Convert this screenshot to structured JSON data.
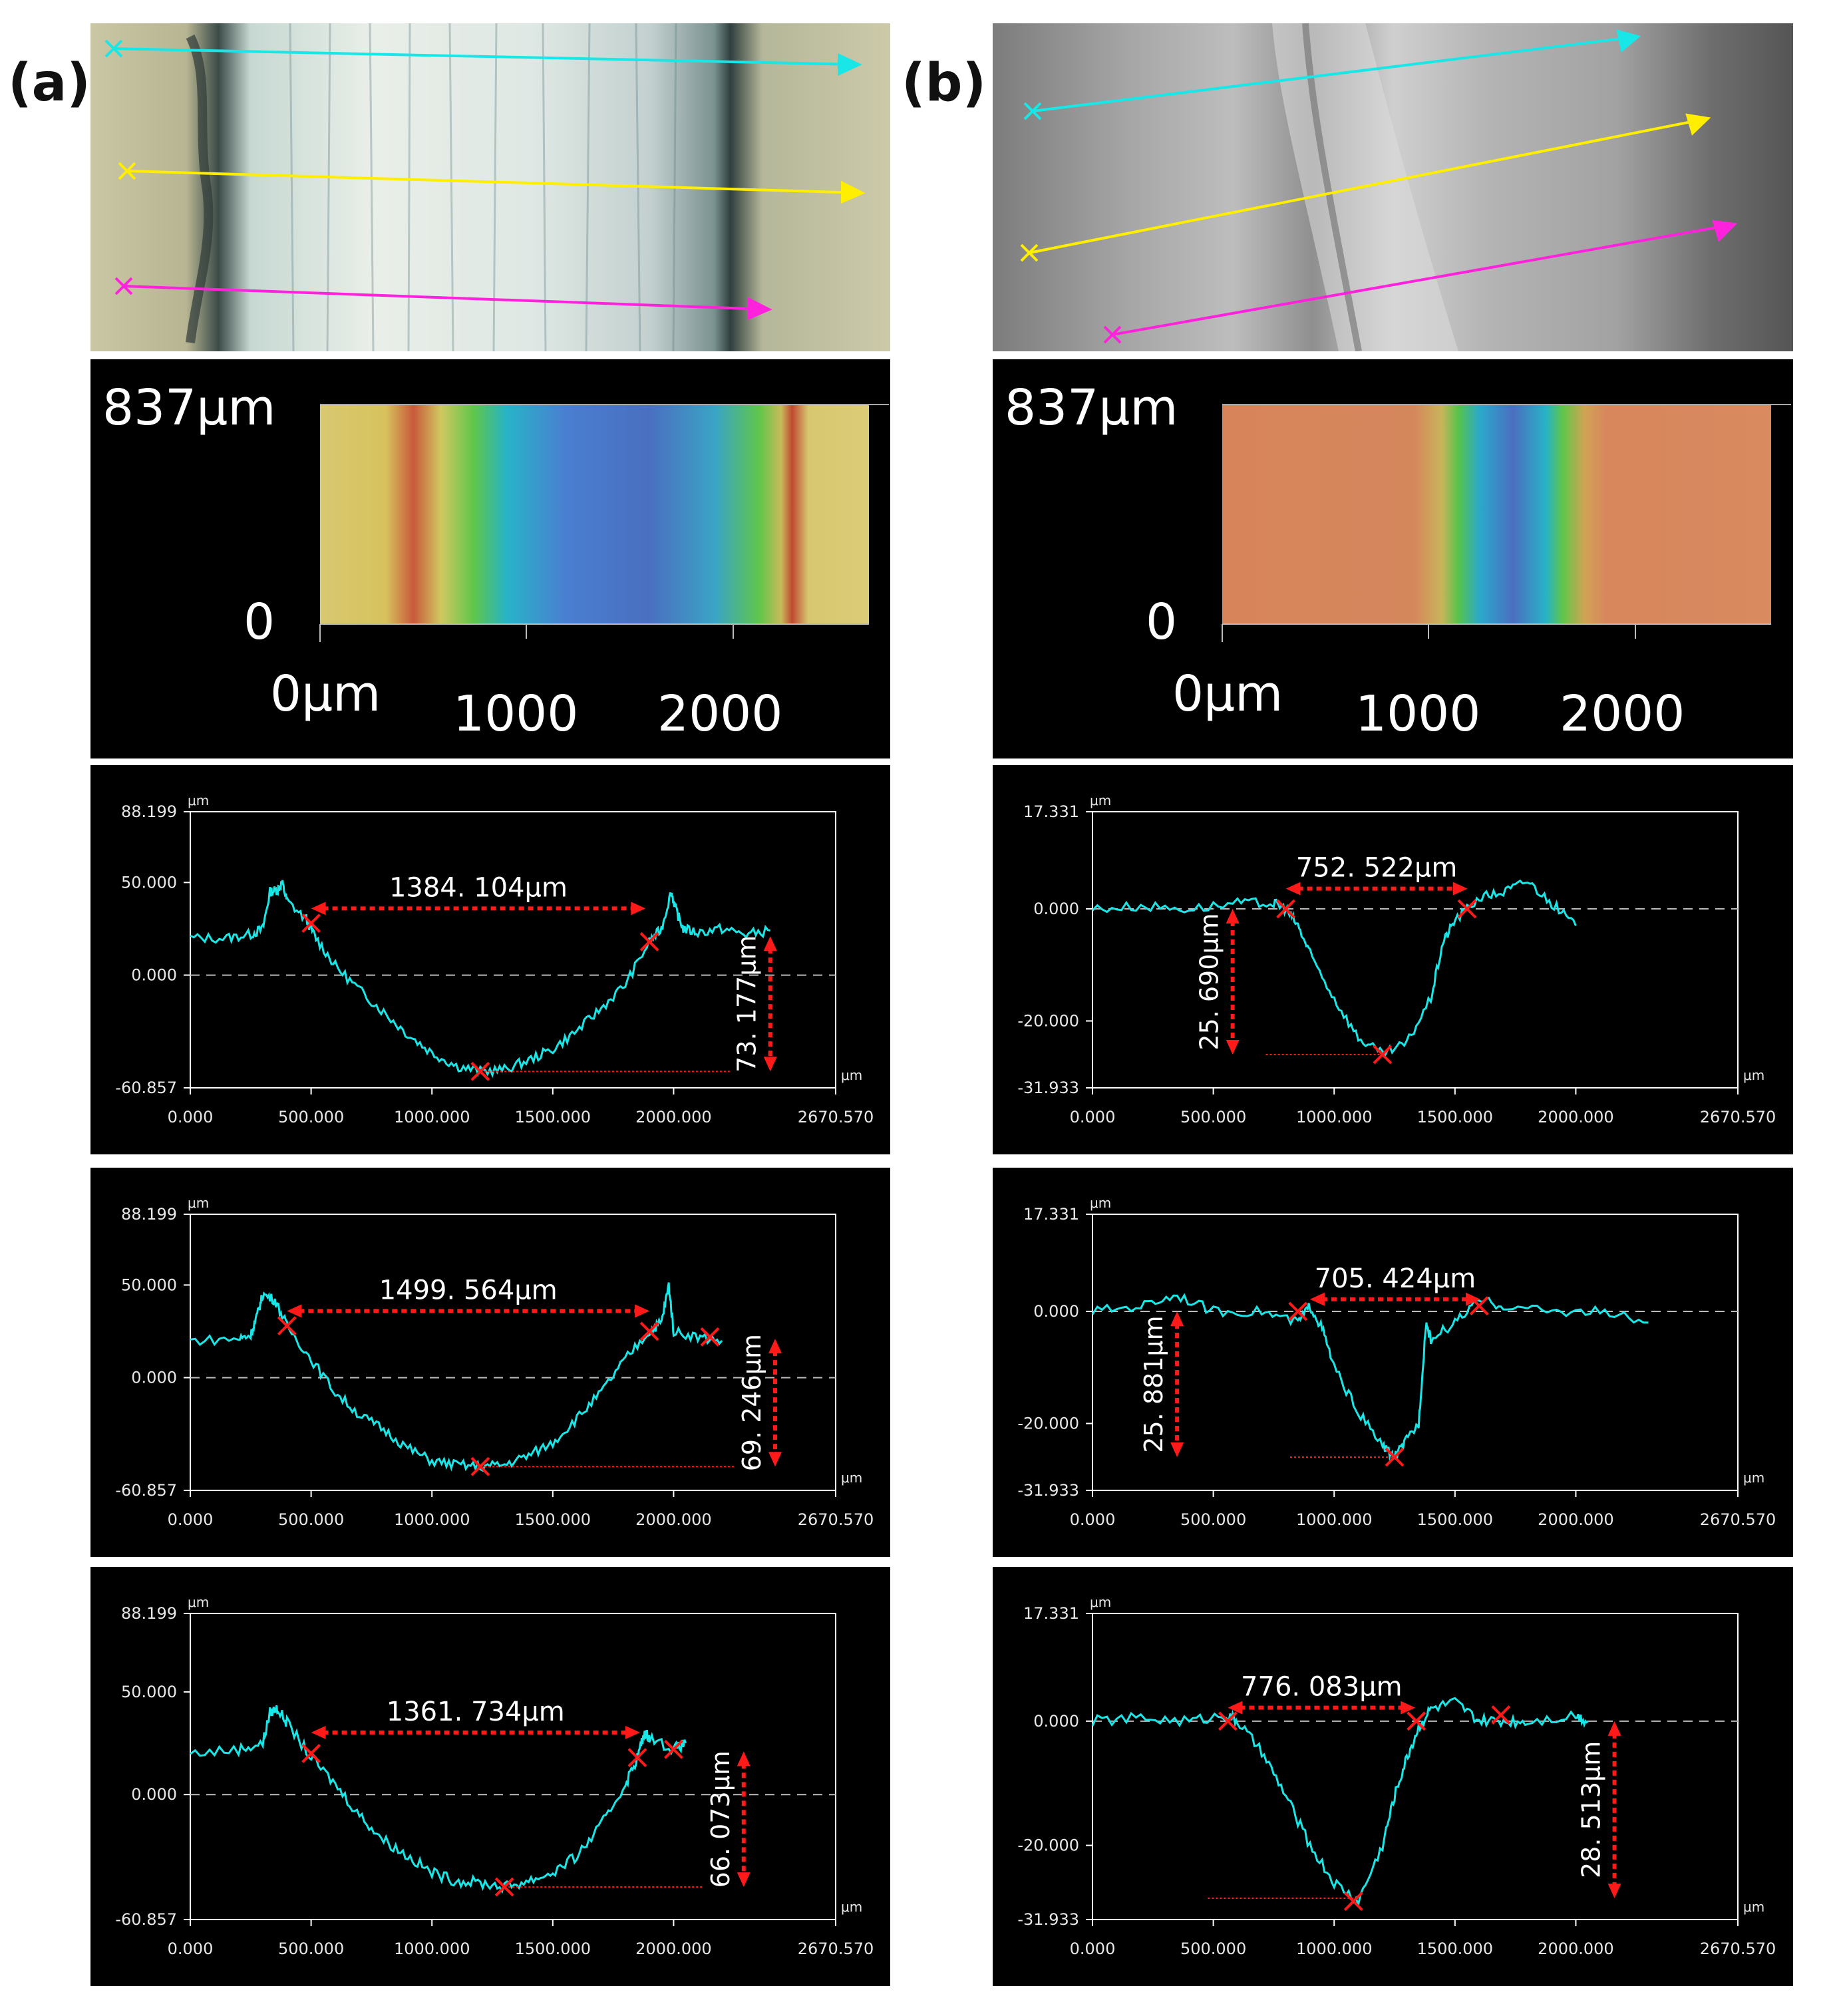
{
  "figure": {
    "panel_labels": [
      "(a)",
      "(b)"
    ],
    "colors": {
      "profile": "#19e6e6",
      "annotation": "#ff1a1a",
      "line_cyan": "#19e6e6",
      "line_yellow": "#ffee00",
      "line_magenta": "#ff22dd",
      "frame": "#ffffff",
      "tick_text": "#e8e8e8"
    }
  },
  "height_maps": [
    {
      "panel": "(a)",
      "top_label": "837μm",
      "zero_label": "0",
      "x_labels": [
        "0μm",
        "1000",
        "2000"
      ],
      "palette": "yellow-green-blue"
    },
    {
      "panel": "(b)",
      "top_label": "837μm",
      "zero_label": "0",
      "x_labels": [
        "0μm",
        "1000",
        "2000"
      ],
      "palette": "orange-green-blue"
    }
  ],
  "chart_data": [
    {
      "type": "line",
      "panel": "(a)",
      "profile_index": 1,
      "ylabel": "μm",
      "xlabel": "μm",
      "xlim": [
        0,
        2670.57
      ],
      "ylim": [
        -60.857,
        88.199
      ],
      "y_ticks": [
        "88.199",
        "50.000",
        "0.000",
        "-60.857"
      ],
      "x_ticks": [
        "0.000",
        "500.000",
        "1000.000",
        "1500.000",
        "2000.000",
        "2670.570"
      ],
      "x": [
        0,
        150,
        250,
        300,
        330,
        360,
        380,
        400,
        480,
        520,
        600,
        700,
        800,
        900,
        1000,
        1100,
        1200,
        1300,
        1400,
        1500,
        1600,
        1700,
        1800,
        1900,
        1950,
        1990,
        2010,
        2040,
        2100,
        2200,
        2300,
        2400
      ],
      "values": [
        20,
        20,
        22,
        25,
        45,
        46,
        50,
        40,
        30,
        20,
        5,
        -8,
        -20,
        -32,
        -42,
        -49,
        -52,
        -51,
        -46,
        -40,
        -30,
        -18,
        -5,
        18,
        25,
        45,
        35,
        25,
        23,
        25,
        22,
        24
      ],
      "width_label": "1384. 104μm",
      "width_range": [
        500,
        1884
      ],
      "depth_label": "73. 177μm",
      "depth_range": [
        -52,
        21
      ],
      "depth_x": 2400,
      "min_x": 1200,
      "marker_points": [
        [
          500,
          28
        ],
        [
          1200,
          -52
        ],
        [
          1900,
          18
        ]
      ]
    },
    {
      "type": "line",
      "panel": "(a)",
      "profile_index": 2,
      "ylabel": "μm",
      "xlabel": "μm",
      "xlim": [
        0,
        2670.57
      ],
      "ylim": [
        -60.857,
        88.199
      ],
      "y_ticks": [
        "88.199",
        "50.000",
        "0.000",
        "-60.857"
      ],
      "x_ticks": [
        "0.000",
        "500.000",
        "1000.000",
        "1500.000",
        "2000.000",
        "2670.570"
      ],
      "x": [
        0,
        200,
        250,
        280,
        300,
        350,
        400,
        500,
        600,
        700,
        800,
        900,
        1000,
        1100,
        1200,
        1300,
        1400,
        1500,
        1600,
        1700,
        1800,
        1900,
        1950,
        1980,
        2000,
        2100,
        2200
      ],
      "values": [
        20,
        21,
        23,
        35,
        45,
        42,
        28,
        10,
        -8,
        -20,
        -28,
        -38,
        -45,
        -47,
        -48,
        -47,
        -42,
        -35,
        -22,
        -8,
        10,
        25,
        30,
        50,
        25,
        22,
        20
      ],
      "width_label": "1499. 564μm",
      "width_range": [
        400,
        1900
      ],
      "depth_label": "69. 246μm",
      "depth_range": [
        -48,
        21
      ],
      "depth_x": 2420,
      "min_x": 1200,
      "marker_points": [
        [
          400,
          28
        ],
        [
          1200,
          -48
        ],
        [
          1900,
          25
        ],
        [
          2150,
          22
        ]
      ]
    },
    {
      "type": "line",
      "panel": "(a)",
      "profile_index": 3,
      "ylabel": "μm",
      "xlabel": "μm",
      "xlim": [
        0,
        2670.57
      ],
      "ylim": [
        -60.857,
        88.199
      ],
      "y_ticks": [
        "88.199",
        "50.000",
        "0.000",
        "-60.857"
      ],
      "x_ticks": [
        "0.000",
        "500.000",
        "1000.000",
        "1500.000",
        "2000.000",
        "2670.570"
      ],
      "x": [
        0,
        200,
        300,
        330,
        360,
        400,
        500,
        600,
        700,
        800,
        900,
        1000,
        1100,
        1200,
        1300,
        1400,
        1500,
        1600,
        1700,
        1800,
        1850,
        1880,
        1900,
        2000,
        2050
      ],
      "values": [
        20,
        22,
        25,
        40,
        42,
        35,
        18,
        5,
        -10,
        -22,
        -30,
        -38,
        -42,
        -43,
        -45,
        -42,
        -38,
        -30,
        -15,
        5,
        18,
        30,
        28,
        22,
        25
      ],
      "width_label": "1361. 734μm",
      "width_range": [
        500,
        1861
      ],
      "depth_label": "66. 073μm",
      "depth_range": [
        -45,
        21
      ],
      "depth_x": 2290,
      "min_x": 1300,
      "marker_points": [
        [
          500,
          20
        ],
        [
          1300,
          -45
        ],
        [
          1850,
          18
        ],
        [
          2000,
          22
        ]
      ]
    },
    {
      "type": "line",
      "panel": "(b)",
      "profile_index": 1,
      "ylabel": "μm",
      "xlabel": "μm",
      "xlim": [
        0,
        2670.57
      ],
      "ylim": [
        -31.933,
        17.331
      ],
      "y_ticks": [
        "17.331",
        "0.000",
        "-20.000",
        "-31.933"
      ],
      "x_ticks": [
        "0.000",
        "500.000",
        "1000.000",
        "1500.000",
        "2000.000",
        "2670.570"
      ],
      "x": [
        0,
        200,
        400,
        600,
        750,
        800,
        850,
        900,
        1000,
        1100,
        1200,
        1300,
        1400,
        1450,
        1500,
        1600,
        1700,
        1800,
        1900,
        2000
      ],
      "values": [
        0,
        0.5,
        0,
        1,
        1,
        0,
        -3,
        -8,
        -16,
        -23,
        -26,
        -24,
        -16,
        -6,
        -2,
        2,
        3,
        5,
        1,
        -3
      ],
      "width_label": "752. 522μm",
      "width_range": [
        800,
        1552
      ],
      "depth_label": "25. 690μm",
      "depth_range": [
        -26,
        0
      ],
      "depth_x": 580,
      "min_x": 1200,
      "marker_points": [
        [
          800,
          0
        ],
        [
          1200,
          -26
        ],
        [
          1550,
          0
        ]
      ]
    },
    {
      "type": "line",
      "panel": "(b)",
      "profile_index": 2,
      "ylabel": "μm",
      "xlabel": "μm",
      "xlim": [
        0,
        2670.57
      ],
      "ylim": [
        -31.933,
        17.331
      ],
      "y_ticks": [
        "17.331",
        "0.000",
        "-20.000",
        "-31.933"
      ],
      "x_ticks": [
        "0.000",
        "500.000",
        "1000.000",
        "1500.000",
        "2000.000",
        "2670.570"
      ],
      "x": [
        0,
        200,
        350,
        500,
        700,
        850,
        900,
        950,
        1000,
        1100,
        1200,
        1250,
        1300,
        1350,
        1380,
        1400,
        1500,
        1600,
        1700,
        1900,
        2100,
        2300
      ],
      "values": [
        0,
        1,
        3,
        0,
        0,
        -2,
        1,
        -3,
        -10,
        -18,
        -24,
        -26,
        -23,
        -20,
        -2,
        -5,
        -2,
        2,
        1,
        0,
        0,
        -2
      ],
      "width_label": "705. 424μm",
      "width_range": [
        900,
        1605
      ],
      "depth_label": "25. 881μm",
      "depth_range": [
        -26,
        0
      ],
      "depth_x": 350,
      "min_x": 1250,
      "marker_points": [
        [
          850,
          0
        ],
        [
          1250,
          -26
        ],
        [
          1600,
          1
        ]
      ]
    },
    {
      "type": "line",
      "panel": "(b)",
      "profile_index": 3,
      "ylabel": "μm",
      "xlabel": "μm",
      "xlim": [
        0,
        2670.57
      ],
      "ylim": [
        -31.933,
        17.331
      ],
      "y_ticks": [
        "17.331",
        "0.000",
        "-20.000",
        "-31.933"
      ],
      "x_ticks": [
        "0.000",
        "500.000",
        "1000.000",
        "1500.000",
        "2000.000",
        "2670.570"
      ],
      "x": [
        0,
        200,
        400,
        550,
        600,
        700,
        800,
        900,
        1000,
        1100,
        1200,
        1250,
        1300,
        1350,
        1400,
        1500,
        1600,
        1700,
        1800,
        2000,
        2050
      ],
      "values": [
        0,
        0.5,
        0,
        1,
        0,
        -5,
        -12,
        -20,
        -26,
        -29,
        -20,
        -12,
        -6,
        -1,
        2,
        3,
        0,
        0,
        0,
        1,
        0
      ],
      "width_label": "776. 083μm",
      "width_range": [
        560,
        1336
      ],
      "depth_label": "28. 513μm",
      "depth_range": [
        -28.5,
        0
      ],
      "depth_x": 2160,
      "min_x": 1080,
      "marker_points": [
        [
          560,
          0
        ],
        [
          1080,
          -29
        ],
        [
          1340,
          0
        ],
        [
          1690,
          1
        ]
      ]
    }
  ]
}
